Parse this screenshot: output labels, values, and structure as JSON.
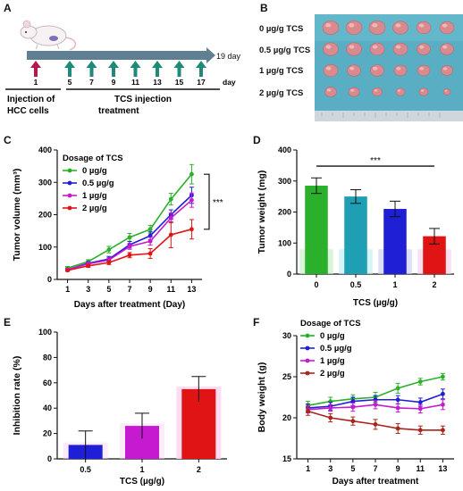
{
  "colors": {
    "green": "#2bb02b",
    "blue": "#1f1fd6",
    "magenta": "#c61ad1",
    "red": "#e01414",
    "dkred": "#a8251c",
    "teal": "#1f9fb3",
    "arrow_red": "#b21a4a",
    "arrow_teal": "#1f8a78",
    "timeline": "#5f7f93"
  },
  "panel_labels": [
    "A",
    "B",
    "C",
    "D",
    "E",
    "F"
  ],
  "panel_a": {
    "end_label": "19 day",
    "day_unit": "day",
    "injection_day": "1",
    "treatment_days": [
      "5",
      "7",
      "9",
      "11",
      "13",
      "15",
      "17"
    ],
    "injection_text": [
      "Injection of",
      "HCC cells"
    ],
    "treatment_text": [
      "TCS injection",
      "treatment"
    ],
    "mouse_icon": "mouse-icon"
  },
  "panel_b": {
    "rows": [
      "0 µg/g TCS",
      "0.5 µg/g TCS",
      "1 µg/g TCS",
      "2 µg/g TCS"
    ]
  },
  "chart_data": [
    {
      "panel": "C",
      "type": "line",
      "xlabel": "Days after treatment (Day)",
      "ylabel": "Tumor volume (mm³)",
      "x": [
        1,
        3,
        5,
        7,
        9,
        11,
        13
      ],
      "xlim": [
        0,
        14
      ],
      "ylim": [
        0,
        400
      ],
      "yticks": [
        0,
        100,
        200,
        300,
        400
      ],
      "legend_title": "Dosage of TCS",
      "legend_position": "top-left",
      "significance": "***",
      "series": [
        {
          "name": "0 µg/g",
          "values": [
            35,
            55,
            92,
            130,
            155,
            248,
            325
          ],
          "errors": [
            5,
            6,
            10,
            12,
            12,
            18,
            30
          ]
        },
        {
          "name": "0.5 µg/g",
          "values": [
            30,
            50,
            63,
            107,
            135,
            200,
            260
          ],
          "errors": [
            4,
            5,
            8,
            10,
            12,
            15,
            25
          ]
        },
        {
          "name": "1 µg/g",
          "values": [
            30,
            48,
            60,
            102,
            118,
            190,
            245
          ],
          "errors": [
            4,
            5,
            7,
            9,
            12,
            15,
            22
          ]
        },
        {
          "name": "2 µg/g",
          "values": [
            28,
            42,
            52,
            75,
            80,
            138,
            155
          ],
          "errors": [
            3,
            5,
            6,
            8,
            15,
            40,
            30
          ]
        }
      ]
    },
    {
      "panel": "D",
      "type": "bar",
      "xlabel": "TCS (µg/g)",
      "ylabel": "Tumor weight (mg)",
      "categories": [
        "0",
        "0.5",
        "1",
        "2"
      ],
      "values": [
        285,
        250,
        210,
        122
      ],
      "errors": [
        25,
        22,
        25,
        25
      ],
      "ylim": [
        0,
        400
      ],
      "yticks": [
        0,
        100,
        200,
        300,
        400
      ],
      "significance": "***"
    },
    {
      "panel": "E",
      "type": "bar",
      "xlabel": "TCS (µg/g)",
      "ylabel": "Inhibition rate (%)",
      "categories": [
        "0.5",
        "1",
        "2"
      ],
      "values": [
        11,
        26,
        55
      ],
      "errors": [
        11,
        10,
        10
      ],
      "ylim": [
        0,
        100
      ],
      "yticks": [
        0,
        20,
        40,
        60,
        80,
        100
      ]
    },
    {
      "panel": "F",
      "type": "line",
      "xlabel": "Days after treatment",
      "ylabel": "Body weight (g)",
      "x": [
        1,
        3,
        5,
        7,
        9,
        11,
        13
      ],
      "xlim": [
        0,
        14
      ],
      "ylim": [
        15,
        30
      ],
      "yticks": [
        15,
        20,
        25,
        30
      ],
      "legend_title": "Dosage of TCS",
      "legend_position": "top-left",
      "series": [
        {
          "name": "0 µg/g",
          "values": [
            21.5,
            22.0,
            22.3,
            22.5,
            23.6,
            24.4,
            25.0
          ],
          "errors": [
            0.5,
            0.5,
            0.5,
            0.6,
            0.6,
            0.4,
            0.4
          ]
        },
        {
          "name": "0.5 µg/g",
          "values": [
            21.2,
            21.4,
            22.0,
            22.2,
            22.2,
            21.9,
            22.9
          ],
          "errors": [
            0.5,
            0.5,
            0.5,
            0.5,
            0.5,
            0.5,
            0.6
          ]
        },
        {
          "name": "1 µg/g",
          "values": [
            21.0,
            21.2,
            21.3,
            21.6,
            21.2,
            21.1,
            21.6
          ],
          "errors": [
            0.4,
            0.4,
            0.5,
            0.5,
            0.5,
            0.5,
            0.6
          ]
        },
        {
          "name": "2 µg/g",
          "values": [
            20.8,
            20.0,
            19.6,
            19.2,
            18.7,
            18.5,
            18.5
          ],
          "errors": [
            0.5,
            0.5,
            0.5,
            0.6,
            0.6,
            0.5,
            0.5
          ]
        }
      ]
    }
  ]
}
